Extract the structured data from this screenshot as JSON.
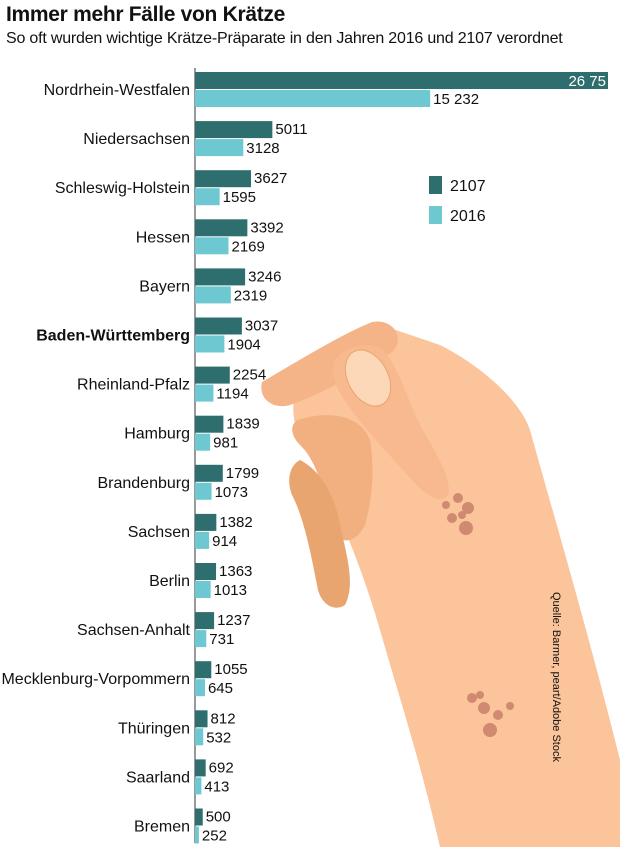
{
  "title": "Immer mehr Fälle von Krätze",
  "subtitle": "So oft wurden wichtige Krätze-Präparate in den Jahren 2016 und 2107 verordnet",
  "source": "Quelle: Barmer, peart/Adobe Stock",
  "colors": {
    "series_a": "#2e6e6e",
    "series_b": "#6ec8d2",
    "skin": "#fbc49b",
    "skin_dark": "#e9a56f",
    "rash": "#c9806b"
  },
  "chart_data": {
    "type": "bar",
    "orientation": "horizontal",
    "categories": [
      "Nordrhein-Westfalen",
      "Niedersachsen",
      "Schleswig-Holstein",
      "Hessen",
      "Bayern",
      "Baden-Württemberg",
      "Rheinland-Pfalz",
      "Hamburg",
      "Brandenburg",
      "Sachsen",
      "Berlin",
      "Sachsen-Anhalt",
      "Mecklenburg-Vorpommern",
      "Thüringen",
      "Saarland",
      "Bremen"
    ],
    "value_labels_a": [
      "26 75",
      "5011",
      "3627",
      "3392",
      "3246",
      "3037",
      "2254",
      "1839",
      "1799",
      "1382",
      "1363",
      "1237",
      "1055",
      "812",
      "692",
      "500"
    ],
    "value_labels_b": [
      "15 232",
      "3128",
      "1595",
      "2169",
      "2319",
      "1904",
      "1194",
      "981",
      "1073",
      "914",
      "1013",
      "731",
      "645",
      "532",
      "413",
      "252"
    ],
    "highlight": "Baden-Württemberg",
    "series": [
      {
        "name": "2107",
        "values": [
          26750,
          5011,
          3627,
          3392,
          3246,
          3037,
          2254,
          1839,
          1799,
          1382,
          1363,
          1237,
          1055,
          812,
          692,
          500
        ]
      },
      {
        "name": "2016",
        "values": [
          15232,
          3128,
          1595,
          2169,
          2319,
          1904,
          1194,
          981,
          1073,
          914,
          1013,
          731,
          645,
          532,
          413,
          252
        ]
      }
    ],
    "legend_position": "right",
    "grid": false
  }
}
